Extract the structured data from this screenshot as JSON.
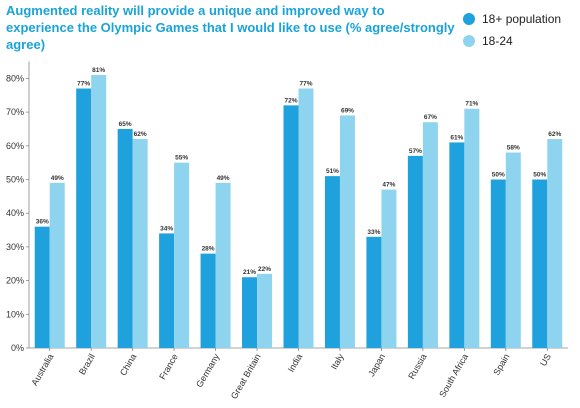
{
  "chart_data": {
    "type": "bar",
    "title": "Augmented reality will provide a unique and improved way to experience the Olympic Games that I would like to use (% agree/strongly agree)",
    "categories": [
      "Australia",
      "Brazil",
      "China",
      "France",
      "Germany",
      "Great Britain",
      "India",
      "Italy",
      "Japan",
      "Russia",
      "South Africa",
      "Spain",
      "US"
    ],
    "series": [
      {
        "name": "18+ population",
        "color": "#1ea1dc",
        "values": [
          36,
          77,
          65,
          34,
          28,
          21,
          72,
          51,
          33,
          57,
          61,
          50,
          50
        ]
      },
      {
        "name": "18-24",
        "color": "#8ed4ef",
        "values": [
          49,
          81,
          62,
          55,
          49,
          22,
          77,
          69,
          47,
          67,
          71,
          58,
          62
        ]
      }
    ],
    "yticks": [
      "0%",
      "10%",
      "20%",
      "30%",
      "40%",
      "50%",
      "60%",
      "70%",
      "80%"
    ],
    "ylim": [
      0,
      85
    ],
    "xlabel": "",
    "ylabel": "",
    "grid": false,
    "legend_position": "top-right",
    "value_suffix": "%"
  }
}
